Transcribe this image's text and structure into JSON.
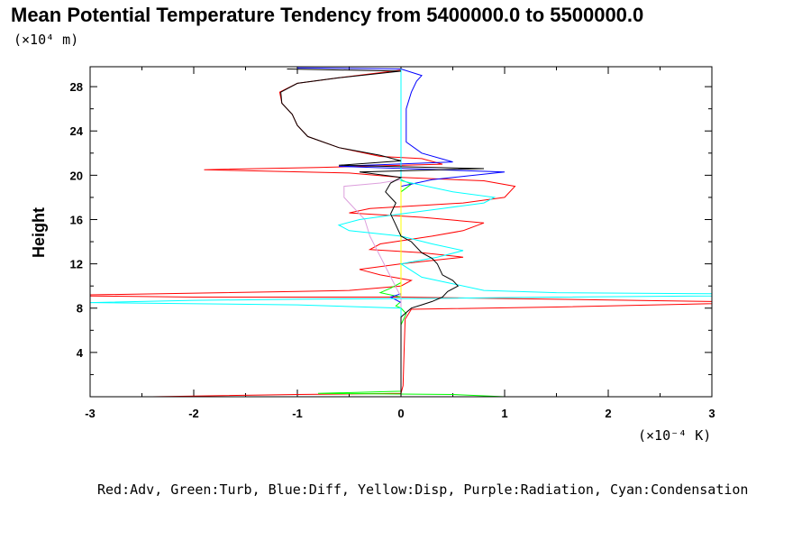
{
  "chart_data": {
    "type": "line",
    "title": "Mean Potential Temperature Tendency from 5400000.0 to 5500000.0",
    "y_scale_note": "(×10⁴ m)",
    "x_scale_note": "(×10⁻⁴ K)",
    "ylabel": "Height",
    "xlabel": "",
    "xlim": [
      -3,
      3
    ],
    "ylim": [
      0,
      29.8
    ],
    "xticks": [
      "-3",
      "-2",
      "-1",
      "0",
      "1",
      "2",
      "3"
    ],
    "yticks": [
      "4",
      "8",
      "12",
      "16",
      "20",
      "24",
      "28"
    ],
    "legend_text": "Red:Adv, Green:Turb, Blue:Diff, Yellow:Disp, Purple:Radiation, Cyan:Condensation",
    "series": [
      {
        "name": "Adv",
        "color": "#ff0000",
        "points": [
          [
            -2.4,
            0.0
          ],
          [
            -1.0,
            0.2
          ],
          [
            0.0,
            0.3
          ],
          [
            0.02,
            1.0
          ],
          [
            0.03,
            4.0
          ],
          [
            0.04,
            7.0
          ],
          [
            0.1,
            7.9
          ],
          [
            1.5,
            8.1
          ],
          [
            3.0,
            8.4
          ],
          [
            3.0,
            8.6
          ],
          [
            1.5,
            8.8
          ],
          [
            0.0,
            9.0
          ],
          [
            -2.0,
            9.0
          ],
          [
            -3.0,
            9.1
          ],
          [
            -3.0,
            9.2
          ],
          [
            -1.0,
            9.5
          ],
          [
            -0.5,
            9.6
          ],
          [
            0.0,
            10.0
          ],
          [
            0.1,
            10.5
          ],
          [
            -0.2,
            11.0
          ],
          [
            -0.4,
            11.5
          ],
          [
            0.0,
            12.0
          ],
          [
            0.3,
            12.3
          ],
          [
            0.6,
            12.6
          ],
          [
            0.2,
            13.0
          ],
          [
            -0.3,
            13.3
          ],
          [
            -0.2,
            13.8
          ],
          [
            0.3,
            14.5
          ],
          [
            0.6,
            15.0
          ],
          [
            0.8,
            15.7
          ],
          [
            0.2,
            16.2
          ],
          [
            -0.5,
            16.6
          ],
          [
            -0.3,
            17.0
          ],
          [
            0.6,
            17.5
          ],
          [
            1.0,
            18.0
          ],
          [
            1.1,
            19.0
          ],
          [
            0.8,
            19.5
          ],
          [
            0.0,
            19.8
          ],
          [
            -0.5,
            20.2
          ],
          [
            -1.9,
            20.5
          ],
          [
            -0.8,
            20.7
          ],
          [
            0.4,
            21.0
          ],
          [
            0.2,
            21.5
          ],
          [
            -0.2,
            21.7
          ],
          [
            -0.6,
            22.5
          ],
          [
            -0.9,
            23.5
          ],
          [
            -1.0,
            24.5
          ],
          [
            -1.05,
            25.5
          ],
          [
            -1.15,
            26.5
          ],
          [
            -1.17,
            27.5
          ],
          [
            -1.0,
            28.3
          ],
          [
            -0.6,
            28.8
          ],
          [
            0.0,
            29.5
          ]
        ]
      },
      {
        "name": "Turb",
        "color": "#00ff00",
        "points": [
          [
            1.0,
            0.0
          ],
          [
            0.5,
            0.2
          ],
          [
            -0.8,
            0.3
          ],
          [
            0.0,
            0.5
          ],
          [
            0.0,
            1.0
          ],
          [
            0.0,
            6.5
          ],
          [
            0.05,
            7.5
          ],
          [
            0.0,
            8.0
          ],
          [
            -0.05,
            8.2
          ],
          [
            0.0,
            8.6
          ],
          [
            0.0,
            9.0
          ],
          [
            -0.2,
            9.4
          ],
          [
            -0.1,
            9.8
          ],
          [
            0.0,
            10.3
          ],
          [
            0.0,
            18.5
          ],
          [
            0.1,
            19.2
          ],
          [
            0.0,
            19.6
          ],
          [
            0.0,
            19.8
          ]
        ]
      },
      {
        "name": "Diff",
        "color": "#0000ff",
        "points": [
          [
            0.0,
            0.0
          ],
          [
            0.0,
            8.5
          ],
          [
            -0.1,
            9.0
          ],
          [
            0.0,
            9.3
          ],
          [
            0.0,
            19.0
          ],
          [
            0.3,
            19.6
          ],
          [
            1.0,
            20.3
          ],
          [
            -0.6,
            20.8
          ],
          [
            0.5,
            21.2
          ],
          [
            0.2,
            22.0
          ],
          [
            0.05,
            23.0
          ],
          [
            0.05,
            26.0
          ],
          [
            0.1,
            27.5
          ],
          [
            0.15,
            28.5
          ],
          [
            0.2,
            29.0
          ],
          [
            0.0,
            29.6
          ],
          [
            -1.0,
            29.7
          ]
        ]
      },
      {
        "name": "Disp",
        "color": "#ffff00",
        "points": [
          [
            0.0,
            0.0
          ],
          [
            0.0,
            19.8
          ]
        ]
      },
      {
        "name": "Radiation",
        "color": "#dda0dd",
        "points": [
          [
            0.0,
            0.0
          ],
          [
            0.0,
            9.0
          ],
          [
            -0.3,
            14.5
          ],
          [
            -0.35,
            16.0
          ],
          [
            -0.55,
            18.0
          ],
          [
            -0.55,
            19.0
          ],
          [
            -0.2,
            19.3
          ],
          [
            0.0,
            19.6
          ]
        ]
      },
      {
        "name": "Condensation",
        "color": "#00ffff",
        "points": [
          [
            0.0,
            0.0
          ],
          [
            0.0,
            8.0
          ],
          [
            -1.0,
            8.3
          ],
          [
            -3.0,
            8.5
          ],
          [
            -2.0,
            8.7
          ],
          [
            -1.0,
            8.8
          ],
          [
            0.5,
            8.9
          ],
          [
            1.5,
            9.0
          ],
          [
            3.0,
            9.1
          ],
          [
            3.0,
            9.3
          ],
          [
            1.5,
            9.4
          ],
          [
            0.8,
            9.6
          ],
          [
            0.5,
            10.2
          ],
          [
            0.2,
            10.8
          ],
          [
            0.0,
            12.0
          ],
          [
            0.35,
            12.6
          ],
          [
            0.6,
            13.2
          ],
          [
            0.3,
            13.8
          ],
          [
            0.0,
            14.5
          ],
          [
            -0.5,
            15.0
          ],
          [
            -0.6,
            15.5
          ],
          [
            -0.4,
            16.0
          ],
          [
            0.0,
            16.5
          ],
          [
            0.4,
            17.0
          ],
          [
            0.8,
            17.5
          ],
          [
            0.9,
            18.0
          ],
          [
            0.5,
            18.5
          ],
          [
            0.0,
            19.5
          ],
          [
            0.0,
            29.6
          ]
        ]
      },
      {
        "name": "Total",
        "color": "#000000",
        "points": [
          [
            0.0,
            0.0
          ],
          [
            0.0,
            1.0
          ],
          [
            0.0,
            7.2
          ],
          [
            0.1,
            8.0
          ],
          [
            0.2,
            8.3
          ],
          [
            0.3,
            8.6
          ],
          [
            0.4,
            9.0
          ],
          [
            0.45,
            9.5
          ],
          [
            0.55,
            10.0
          ],
          [
            0.5,
            10.5
          ],
          [
            0.4,
            11.0
          ],
          [
            0.35,
            12.0
          ],
          [
            0.3,
            12.5
          ],
          [
            0.2,
            13.0
          ],
          [
            0.1,
            14.0
          ],
          [
            0.0,
            14.5
          ],
          [
            -0.05,
            15.5
          ],
          [
            -0.1,
            16.5
          ],
          [
            -0.05,
            17.5
          ],
          [
            -0.15,
            18.5
          ],
          [
            -0.1,
            19.3
          ],
          [
            0.0,
            19.8
          ],
          [
            -0.4,
            20.3
          ],
          [
            0.8,
            20.6
          ],
          [
            -0.6,
            20.9
          ],
          [
            0.0,
            21.3
          ],
          [
            -0.2,
            21.8
          ],
          [
            -0.6,
            22.5
          ],
          [
            -0.9,
            23.5
          ],
          [
            -1.0,
            24.5
          ],
          [
            -1.05,
            25.5
          ],
          [
            -1.15,
            26.5
          ],
          [
            -1.16,
            27.5
          ],
          [
            -1.0,
            28.3
          ],
          [
            -0.6,
            28.8
          ],
          [
            0.0,
            29.4
          ],
          [
            -1.1,
            29.6
          ]
        ]
      }
    ]
  }
}
